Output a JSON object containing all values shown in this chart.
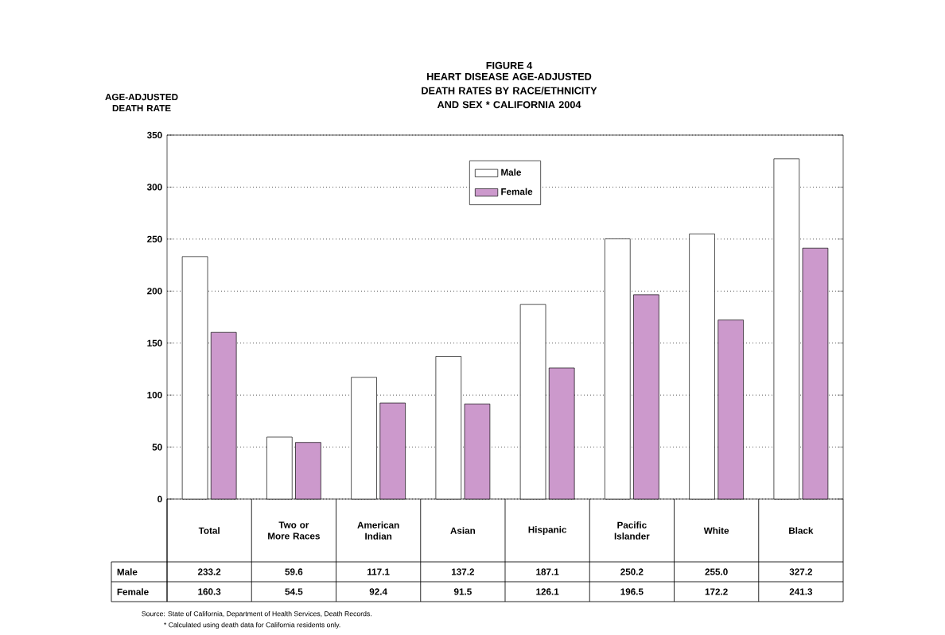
{
  "chart_data": {
    "type": "bar",
    "title": "FIGURE 4",
    "subtitle": "HEART DISEASE AGE-ADJUSTED DEATH RATES BY RACE/ETHNICITY AND SEX * CALIFORNIA 2004",
    "ylabel": "AGE-ADJUSTED DEATH RATE",
    "categories": [
      "Total",
      "Two or More Races",
      "American Indian",
      "Asian",
      "Hispanic",
      "Pacific Islander",
      "White",
      "Black"
    ],
    "series": [
      {
        "name": "Male",
        "color": "#ffffff",
        "values": [
          233.2,
          59.6,
          117.1,
          137.2,
          187.1,
          250.2,
          255.0,
          327.2
        ],
        "value_labels": [
          "233.2",
          "59.6",
          "117.1",
          "137.2",
          "187.1",
          "250.2",
          "255.0",
          "327.2"
        ]
      },
      {
        "name": "Female",
        "color": "#cc99cc",
        "values": [
          160.3,
          54.5,
          92.4,
          91.5,
          126.1,
          196.5,
          172.2,
          241.3
        ],
        "value_labels": [
          "160.3",
          "54.5",
          "92.4",
          "91.5",
          "126.1",
          "196.5",
          "172.2",
          "241.3"
        ]
      }
    ],
    "ylim": [
      0,
      350
    ],
    "yticks": [
      0,
      50,
      100,
      150,
      200,
      250,
      300,
      350
    ],
    "grid": "y",
    "legend": "top",
    "annotations": [
      "Source:  State of California, Department of Health Services, Death Records.",
      "* Calculated using death data for California residents only."
    ]
  }
}
